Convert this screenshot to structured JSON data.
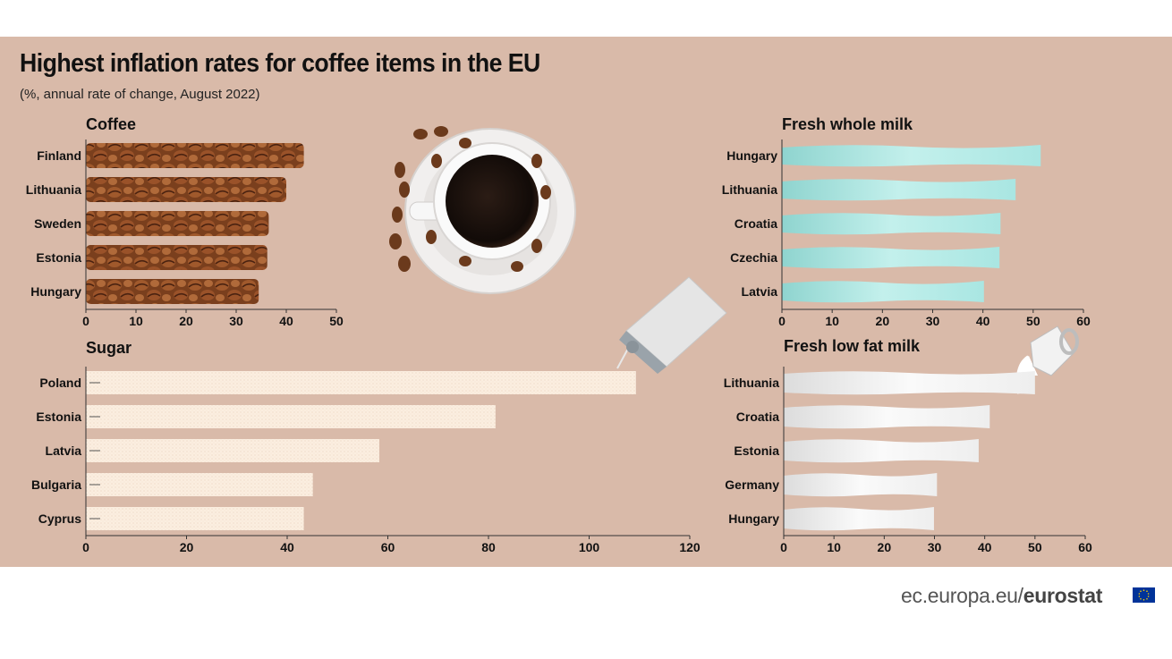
{
  "title": "Highest inflation rates for coffee items in the EU",
  "subtitle": "(%, annual rate of change, August 2022)",
  "footer": {
    "site": "ec.europa.eu/",
    "brand": "eurostat"
  },
  "colors": {
    "background": "#d9baa9",
    "coffee_bar": "#8a4b26",
    "whole_milk_bar": "#bfeeea",
    "sugar_bar": "#fbeee0",
    "low_fat_milk_bar": "#f4f4f4",
    "flag": "#003399"
  },
  "chart_data": [
    {
      "id": "coffee",
      "type": "bar",
      "orientation": "horizontal",
      "title": "Coffee",
      "categories": [
        "Finland",
        "Lithuania",
        "Sweden",
        "Estonia",
        "Hungary"
      ],
      "values": [
        43.5,
        40,
        36.5,
        36.2,
        34.5
      ],
      "xticks": [
        0,
        10,
        20,
        30,
        40,
        50
      ],
      "xlim": [
        0,
        50
      ],
      "grid": false
    },
    {
      "id": "fresh-whole-milk",
      "type": "bar",
      "orientation": "horizontal",
      "title": "Fresh whole milk",
      "categories": [
        "Hungary",
        "Lithuania",
        "Croatia",
        "Czechia",
        "Latvia"
      ],
      "values": [
        51.5,
        46.5,
        43.5,
        43.3,
        40.2
      ],
      "xticks": [
        0,
        10,
        20,
        30,
        40,
        50,
        60
      ],
      "xlim": [
        0,
        60
      ],
      "grid": false
    },
    {
      "id": "sugar",
      "type": "bar",
      "orientation": "horizontal",
      "title": "Sugar",
      "categories": [
        "Poland",
        "Estonia",
        "Latvia",
        "Bulgaria",
        "Cyprus"
      ],
      "values": [
        109.3,
        81.4,
        58.3,
        45.1,
        43.3
      ],
      "xticks": [
        0,
        20,
        40,
        60,
        80,
        100,
        120
      ],
      "xlim": [
        0,
        120
      ],
      "grid": false
    },
    {
      "id": "fresh-low-fat-milk",
      "type": "bar",
      "orientation": "horizontal",
      "title": "Fresh low fat milk",
      "categories": [
        "Lithuania",
        "Croatia",
        "Estonia",
        "Germany",
        "Hungary"
      ],
      "values": [
        50,
        41,
        38.8,
        30.5,
        29.9
      ],
      "xticks": [
        0,
        10,
        20,
        30,
        40,
        50,
        60
      ],
      "xlim": [
        0,
        60
      ],
      "grid": false
    }
  ]
}
